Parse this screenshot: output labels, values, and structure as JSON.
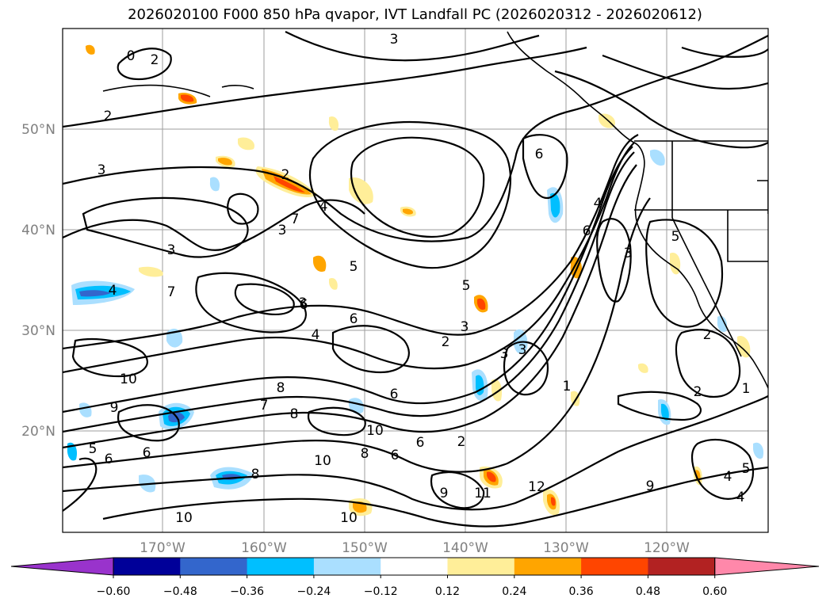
{
  "title": "2026020100 F000 850 hPa qvapor, IVT Landfall PC (2026020312 - 2026020612)",
  "map": {
    "lat_labels": [
      "50°N",
      "40°N",
      "30°N",
      "20°N"
    ],
    "lon_labels": [
      "170°W",
      "160°W",
      "150°W",
      "140°W",
      "130°W",
      "120°W"
    ],
    "contour_labels": [
      "3",
      "2",
      "3",
      "3",
      "2",
      "4",
      "7",
      "3",
      "3",
      "5",
      "6",
      "6",
      "4",
      "7",
      "4",
      "3",
      "2",
      "5",
      "6",
      "6",
      "8",
      "7",
      "8",
      "9",
      "10",
      "10",
      "8",
      "6",
      "10",
      "6",
      "5",
      "8",
      "6",
      "11",
      "12",
      "9",
      "9",
      "10",
      "10",
      "2",
      "2",
      "1",
      "4",
      "5",
      "4",
      "4",
      "6",
      "6",
      "3",
      "3",
      "2",
      "3",
      "2",
      "0",
      "1",
      "5",
      "1",
      "2"
    ]
  },
  "colorbar": {
    "colors": [
      "#9933cc",
      "#000099",
      "#3366cc",
      "#00bfff",
      "#aadfff",
      "#ffffff",
      "#ffee99",
      "#ffa500",
      "#ff4500",
      "#b22222",
      "#ff88aa"
    ],
    "ticks": [
      "−0.60",
      "−0.48",
      "−0.36",
      "−0.24",
      "−0.12",
      "0.12",
      "0.24",
      "0.36",
      "0.48",
      "0.60"
    ]
  }
}
